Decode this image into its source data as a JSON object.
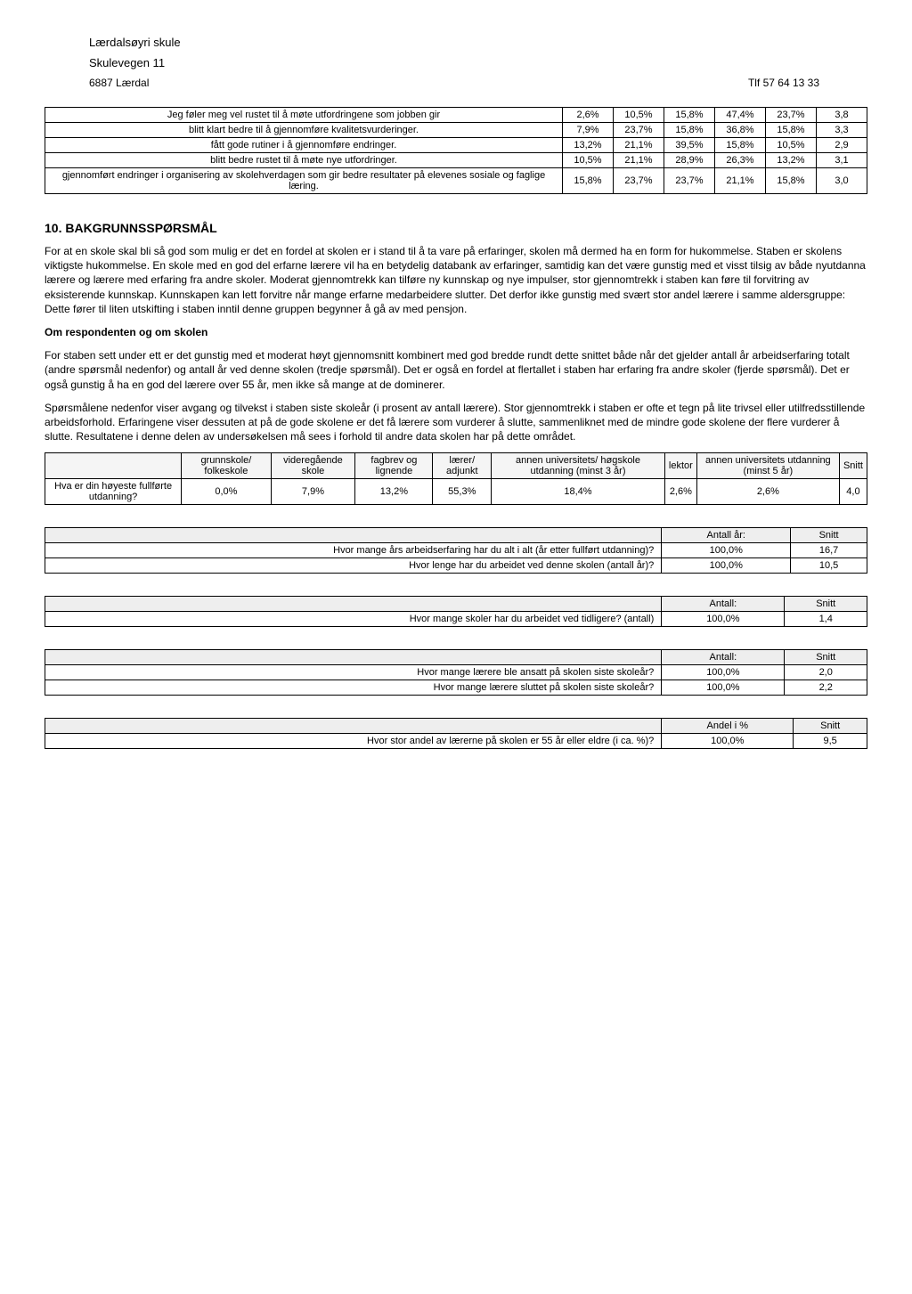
{
  "header": {
    "name": "Lærdalsøyri skule",
    "addr": "Skulevegen 11",
    "city": "6887 Lærdal",
    "phone": "Tlf 57 64 13 33"
  },
  "table1": {
    "rows": [
      {
        "label": "Jeg føler meg vel rustet til å møte utfordringene som jobben gir",
        "c": [
          "2,6%",
          "10,5%",
          "15,8%",
          "47,4%",
          "23,7%",
          "3,8"
        ]
      },
      {
        "label": "blitt klart bedre til å gjennomføre kvalitetsvurderinger.",
        "c": [
          "7,9%",
          "23,7%",
          "15,8%",
          "36,8%",
          "15,8%",
          "3,3"
        ]
      },
      {
        "label": "fått gode rutiner i å gjennomføre endringer.",
        "c": [
          "13,2%",
          "21,1%",
          "39,5%",
          "15,8%",
          "10,5%",
          "2,9"
        ]
      },
      {
        "label": "blitt bedre rustet til å møte nye utfordringer.",
        "c": [
          "10,5%",
          "21,1%",
          "28,9%",
          "26,3%",
          "13,2%",
          "3,1"
        ]
      },
      {
        "label": "gjennomført endringer i organisering av skolehverdagen som gir bedre resultater på elevenes sosiale og faglige læring.",
        "c": [
          "15,8%",
          "23,7%",
          "23,7%",
          "21,1%",
          "15,8%",
          "3,0"
        ]
      }
    ]
  },
  "section10": {
    "title": "10. BAKGRUNNSSPØRSMÅL",
    "p1": "For at en skole skal bli så god som mulig er det en fordel at skolen er i stand til å ta vare på erfaringer, skolen må dermed ha en form for hukommelse. Staben er skolens viktigste hukommelse. En skole med en god del erfarne lærere vil ha en betydelig databank av erfaringer, samtidig kan det være gunstig med et visst tilsig av både nyutdanna lærere og lærere med erfaring fra andre skoler. Moderat gjennomtrekk kan tilføre ny kunnskap og nye impulser, stor gjennomtrekk i staben kan føre til forvitring av eksisterende kunnskap. Kunnskapen kan lett forvitre når mange erfarne medarbeidere slutter. Det derfor ikke gunstig med svært stor andel lærere i samme aldersgruppe: Dette fører til liten utskifting i staben inntil denne gruppen begynner å gå av med pensjon.",
    "sub": "Om respondenten og om skolen",
    "p2": "For staben sett under ett er det gunstig med et moderat høyt gjennomsnitt kombinert med god bredde rundt dette snittet både når det gjelder antall år arbeidserfaring totalt (andre spørsmål nedenfor) og antall år ved denne skolen (tredje spørsmål). Det er også en fordel at flertallet i staben har erfaring fra andre skoler (fjerde spørsmål). Det er også gunstig å ha en god del lærere over 55 år, men ikke så mange at de dominerer.",
    "p3": "Spørsmålene nedenfor viser avgang og tilvekst i staben siste skoleår (i prosent av antall lærere). Stor gjennomtrekk i staben er ofte et tegn på lite trivsel eller utilfredsstillende arbeidsforhold. Erfaringene viser dessuten at på de gode skolene er det få lærere som vurderer å slutte, sammenliknet med de mindre gode skolene der flere vurderer å slutte. Resultatene i denne delen av undersøkelsen må sees i forhold til andre data skolen har på dette området."
  },
  "edu": {
    "headers": [
      "",
      "grunnskole/ folkeskole",
      "videregående skole",
      "fagbrev og lignende",
      "lærer/ adjunkt",
      "annen universitets/ høgskole utdanning (minst 3 år)",
      "lektor",
      "annen universitets utdanning (minst 5 år)",
      "Snitt"
    ],
    "row": {
      "label": "Hva er din høyeste fullførte utdanning?",
      "c": [
        "0,0%",
        "7,9%",
        "13,2%",
        "55,3%",
        "18,4%",
        "2,6%",
        "2,6%",
        "4,0"
      ]
    }
  },
  "t_years": {
    "h": [
      "",
      "Antall år:",
      "Snitt"
    ],
    "rows": [
      {
        "q": "Hvor mange års arbeidserfaring har du alt i alt (år etter fullført utdanning)?",
        "a": "100,0%",
        "s": "16,7"
      },
      {
        "q": "Hvor lenge har du arbeidet ved denne skolen (antall år)?",
        "a": "100,0%",
        "s": "10,5"
      }
    ]
  },
  "t_schools": {
    "h": [
      "",
      "Antall:",
      "Snitt"
    ],
    "rows": [
      {
        "q": "Hvor mange skoler har du arbeidet ved tidligere? (antall)",
        "a": "100,0%",
        "s": "1,4"
      }
    ]
  },
  "t_staff": {
    "h": [
      "",
      "Antall:",
      "Snitt"
    ],
    "rows": [
      {
        "q": "Hvor mange lærere ble ansatt på skolen siste skoleår?",
        "a": "100,0%",
        "s": "2,0"
      },
      {
        "q": "Hvor mange lærere sluttet på skolen siste skoleår?",
        "a": "100,0%",
        "s": "2,2"
      }
    ]
  },
  "t_age": {
    "h": [
      "",
      "Andel i %",
      "Snitt"
    ],
    "rows": [
      {
        "q": "Hvor stor andel av lærerne på skolen er 55 år eller eldre (i ca. %)?",
        "a": "100,0%",
        "s": "9,5"
      }
    ]
  }
}
